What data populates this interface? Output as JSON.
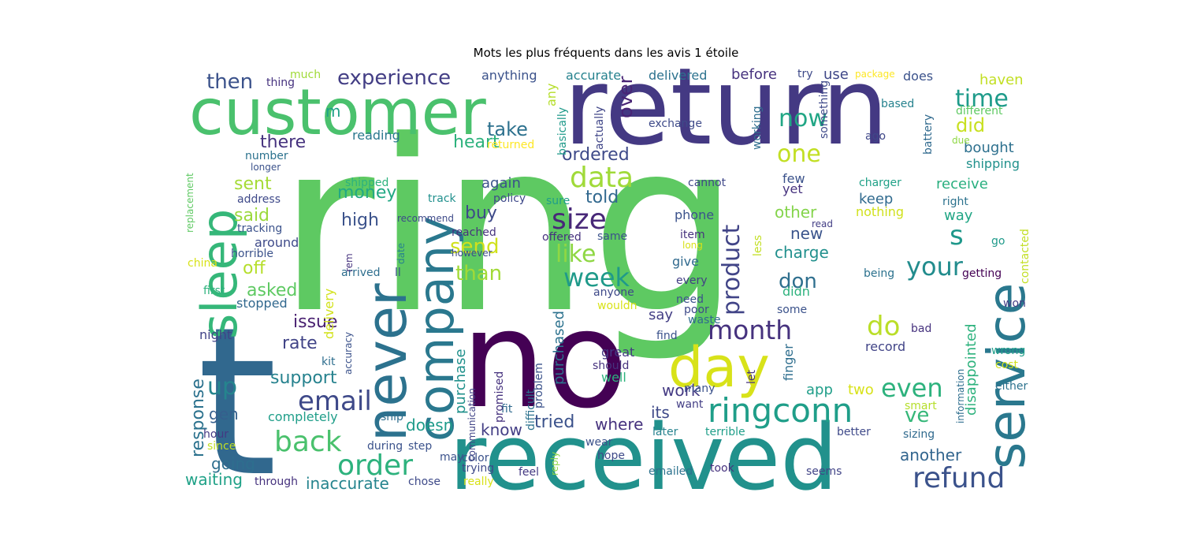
{
  "chart_data": {
    "type": "wordcloud",
    "title": "Mots les plus fréquents dans les avis 1 étoile",
    "background": "#ffffff",
    "colormap": "viridis",
    "words": [
      {
        "text": "ring",
        "color": "#5ec962"
      },
      {
        "text": "t",
        "color": "#31688e"
      },
      {
        "text": "return",
        "color": "#443983"
      },
      {
        "text": "received",
        "color": "#21918c"
      },
      {
        "text": "no",
        "color": "#440154"
      },
      {
        "text": "customer",
        "color": "#4ac16d"
      },
      {
        "text": "never",
        "color": "#2c728e"
      },
      {
        "text": "company",
        "color": "#2a788e"
      },
      {
        "text": "service",
        "color": "#2a788e"
      },
      {
        "text": "sleep",
        "color": "#35b779"
      },
      {
        "text": "day",
        "color": "#d8e219"
      },
      {
        "text": "ringconn",
        "color": "#1f9e89"
      },
      {
        "text": "back",
        "color": "#4ac16d"
      },
      {
        "text": "order",
        "color": "#2db27d"
      },
      {
        "text": "refund",
        "color": "#3b528b"
      },
      {
        "text": "size",
        "color": "#482878"
      },
      {
        "text": "month",
        "color": "#46327e"
      },
      {
        "text": "product",
        "color": "#414487"
      },
      {
        "text": "data",
        "color": "#a0da39"
      },
      {
        "text": "week",
        "color": "#1f9a8a"
      },
      {
        "text": "your",
        "color": "#228c8d"
      },
      {
        "text": "email",
        "color": "#3e4989"
      },
      {
        "text": "experience",
        "color": "#433e85"
      },
      {
        "text": "time",
        "color": "#1e9b8a"
      },
      {
        "text": "now",
        "color": "#21a685"
      },
      {
        "text": "one",
        "color": "#c2df23"
      },
      {
        "text": "do",
        "color": "#bade28"
      },
      {
        "text": "even",
        "color": "#2db27d"
      },
      {
        "text": "s",
        "color": "#1f988b"
      },
      {
        "text": "up",
        "color": "#25858e"
      },
      {
        "text": "like",
        "color": "#8fd744"
      },
      {
        "text": "send",
        "color": "#d0e11c"
      },
      {
        "text": "than",
        "color": "#a2da37"
      },
      {
        "text": "don",
        "color": "#2e6f8e"
      },
      {
        "text": "ve",
        "color": "#35b779"
      },
      {
        "text": "then",
        "color": "#3b528b"
      },
      {
        "text": "take",
        "color": "#2d718e"
      },
      {
        "text": "heart",
        "color": "#2db27d"
      },
      {
        "text": "ordered",
        "color": "#3e4a89"
      },
      {
        "text": "over",
        "color": "#482475"
      },
      {
        "text": "did",
        "color": "#c8e020"
      },
      {
        "text": "there",
        "color": "#46327e"
      },
      {
        "text": "sent",
        "color": "#a5db36"
      },
      {
        "text": "said",
        "color": "#9bd93c"
      },
      {
        "text": "money",
        "color": "#22a884"
      },
      {
        "text": "buy",
        "color": "#3e4a89"
      },
      {
        "text": "told",
        "color": "#31688e"
      },
      {
        "text": "high",
        "color": "#3b528b"
      },
      {
        "text": "issue",
        "color": "#481f70"
      },
      {
        "text": "rate",
        "color": "#414487"
      },
      {
        "text": "support",
        "color": "#26828e"
      },
      {
        "text": "off",
        "color": "#b5de2b"
      },
      {
        "text": "asked",
        "color": "#5ec962"
      },
      {
        "text": "response",
        "color": "#2c728e"
      },
      {
        "text": "gen",
        "color": "#355f8d"
      },
      {
        "text": "going",
        "color": "#2e6e8e"
      },
      {
        "text": "waiting",
        "color": "#1fa187"
      },
      {
        "text": "inaccurate",
        "color": "#25848e"
      },
      {
        "text": "tried",
        "color": "#3b528b"
      },
      {
        "text": "know",
        "color": "#433e85"
      },
      {
        "text": "doesn",
        "color": "#1e9b8a"
      },
      {
        "text": "where",
        "color": "#46327e"
      },
      {
        "text": "work",
        "color": "#443a83"
      },
      {
        "text": "its",
        "color": "#3e4989"
      },
      {
        "text": "app",
        "color": "#1f9e89"
      },
      {
        "text": "two",
        "color": "#d8e219"
      },
      {
        "text": "another",
        "color": "#32658e"
      },
      {
        "text": "new",
        "color": "#3a548c"
      },
      {
        "text": "charge",
        "color": "#21908d"
      },
      {
        "text": "other",
        "color": "#84d44b"
      },
      {
        "text": "receive",
        "color": "#29af7f"
      },
      {
        "text": "keep",
        "color": "#306a8e"
      },
      {
        "text": "way",
        "color": "#21a685"
      },
      {
        "text": "bought",
        "color": "#2d708e"
      },
      {
        "text": "haven",
        "color": "#c2df23"
      },
      {
        "text": "use",
        "color": "#3f4788"
      },
      {
        "text": "before",
        "color": "#46327e"
      },
      {
        "text": "delivered",
        "color": "#2c728e"
      },
      {
        "text": "accurate",
        "color": "#26828e"
      },
      {
        "text": "anything",
        "color": "#3b528b"
      },
      {
        "text": "any",
        "color": "#b5de2b"
      },
      {
        "text": "exchange",
        "color": "#3e4a89"
      },
      {
        "text": "purchased",
        "color": "#2c728e"
      },
      {
        "text": "purchase",
        "color": "#21918c"
      },
      {
        "text": "disappointed",
        "color": "#2db27d"
      },
      {
        "text": "completely",
        "color": "#1f9e89"
      },
      {
        "text": "delivery",
        "color": "#d2e21b"
      },
      {
        "text": "again",
        "color": "#3b528b"
      },
      {
        "text": "say",
        "color": "#433e85"
      },
      {
        "text": "give",
        "color": "#306a8e"
      },
      {
        "text": "record",
        "color": "#414487"
      },
      {
        "text": "stopped",
        "color": "#31688e"
      },
      {
        "text": "night",
        "color": "#404387"
      },
      {
        "text": "hour",
        "color": "#443983"
      },
      {
        "text": "reading",
        "color": "#2a788e"
      },
      {
        "text": "thing",
        "color": "#46337f"
      },
      {
        "text": "much",
        "color": "#a0da39"
      },
      {
        "text": "m",
        "color": "#1fa187"
      },
      {
        "text": "returned",
        "color": "#fde725"
      },
      {
        "text": "basically",
        "color": "#1f9a8a"
      },
      {
        "text": "actually",
        "color": "#404688"
      },
      {
        "text": "working",
        "color": "#2e6e8e"
      },
      {
        "text": "ago",
        "color": "#3f4889"
      },
      {
        "text": "something",
        "color": "#3e4989"
      },
      {
        "text": "battery",
        "color": "#306a8e"
      },
      {
        "text": "due",
        "color": "#8fd744"
      },
      {
        "text": "based",
        "color": "#26828e"
      },
      {
        "text": "different",
        "color": "#5ec962"
      },
      {
        "text": "try",
        "color": "#3e4a89"
      },
      {
        "text": "does",
        "color": "#3b528b"
      },
      {
        "text": "package",
        "color": "#fde725"
      },
      {
        "text": "shipping",
        "color": "#21918c"
      },
      {
        "text": "few",
        "color": "#3b528b"
      },
      {
        "text": "yet",
        "color": "#46327e"
      },
      {
        "text": "charger",
        "color": "#1fa187"
      },
      {
        "text": "nothing",
        "color": "#d0e11c"
      },
      {
        "text": "right",
        "color": "#2c728e"
      },
      {
        "text": "read",
        "color": "#433e85"
      },
      {
        "text": "go",
        "color": "#1f9a8a"
      },
      {
        "text": "contacted",
        "color": "#c2df23"
      },
      {
        "text": "getting",
        "color": "#440154"
      },
      {
        "text": "won",
        "color": "#433e85"
      },
      {
        "text": "being",
        "color": "#2c728e"
      },
      {
        "text": "some",
        "color": "#3b528b"
      },
      {
        "text": "didn",
        "color": "#2db27d"
      },
      {
        "text": "cannot",
        "color": "#3f4788"
      },
      {
        "text": "phone",
        "color": "#3b528b"
      },
      {
        "text": "item",
        "color": "#46327e"
      },
      {
        "text": "long",
        "color": "#d8e219"
      },
      {
        "text": "less",
        "color": "#c2df23"
      },
      {
        "text": "every",
        "color": "#433e85"
      },
      {
        "text": "need",
        "color": "#3b528b"
      },
      {
        "text": "poor",
        "color": "#3e4a89"
      },
      {
        "text": "waste",
        "color": "#306a8e"
      },
      {
        "text": "finger",
        "color": "#2e6e8e"
      },
      {
        "text": "let",
        "color": "#46327e"
      },
      {
        "text": "find",
        "color": "#3b528b"
      },
      {
        "text": "great",
        "color": "#443983"
      },
      {
        "text": "should",
        "color": "#46327e"
      },
      {
        "text": "well",
        "color": "#2db27d"
      },
      {
        "text": "many",
        "color": "#3b528b"
      },
      {
        "text": "want",
        "color": "#433e85"
      },
      {
        "text": "later",
        "color": "#26828e"
      },
      {
        "text": "terrible",
        "color": "#1f9e89"
      },
      {
        "text": "better",
        "color": "#3e4989"
      },
      {
        "text": "sizing",
        "color": "#306a8e"
      },
      {
        "text": "smart",
        "color": "#b5de2b"
      },
      {
        "text": "cost",
        "color": "#d0e11c"
      },
      {
        "text": "either",
        "color": "#2c728e"
      },
      {
        "text": "wrong",
        "color": "#1f9e89"
      },
      {
        "text": "bad",
        "color": "#46327e"
      },
      {
        "text": "information",
        "color": "#2e6e8e"
      },
      {
        "text": "seems",
        "color": "#414487"
      },
      {
        "text": "took",
        "color": "#46327e"
      },
      {
        "text": "emailed",
        "color": "#2c728e"
      },
      {
        "text": "hope",
        "color": "#3e4a89"
      },
      {
        "text": "wear",
        "color": "#3b528b"
      },
      {
        "text": "feel",
        "color": "#443983"
      },
      {
        "text": "reply",
        "color": "#8fd744"
      },
      {
        "text": "really",
        "color": "#d8e219"
      },
      {
        "text": "trying",
        "color": "#3e4989"
      },
      {
        "text": "color",
        "color": "#3b528b"
      },
      {
        "text": "may",
        "color": "#3b528b"
      },
      {
        "text": "fit",
        "color": "#306a8e"
      },
      {
        "text": "promised",
        "color": "#46327e"
      },
      {
        "text": "problem",
        "color": "#3b528b"
      },
      {
        "text": "difficult",
        "color": "#2c728e"
      },
      {
        "text": "communication",
        "color": "#414487"
      },
      {
        "text": "step",
        "color": "#3b528b"
      },
      {
        "text": "ship",
        "color": "#2e6e8e"
      },
      {
        "text": "during",
        "color": "#3b528b"
      },
      {
        "text": "through",
        "color": "#46327e"
      },
      {
        "text": "chose",
        "color": "#3e4a89"
      },
      {
        "text": "since",
        "color": "#c2df23"
      },
      {
        "text": "first",
        "color": "#2db27d"
      },
      {
        "text": "china",
        "color": "#d8e219"
      },
      {
        "text": "horrible",
        "color": "#3b528b"
      },
      {
        "text": "around",
        "color": "#3e4a89"
      },
      {
        "text": "tracking",
        "color": "#3b528b"
      },
      {
        "text": "address",
        "color": "#3e4989"
      },
      {
        "text": "longer",
        "color": "#3b528b"
      },
      {
        "text": "number",
        "color": "#2c728e"
      },
      {
        "text": "replacement",
        "color": "#5ec962"
      },
      {
        "text": "shipped",
        "color": "#2db27d"
      },
      {
        "text": "recommend",
        "color": "#3e4a89"
      },
      {
        "text": "reached",
        "color": "#46327e"
      },
      {
        "text": "however",
        "color": "#3e4a89"
      },
      {
        "text": "arrived",
        "color": "#2e6e8e"
      },
      {
        "text": "ll",
        "color": "#3b528b"
      },
      {
        "text": "date",
        "color": "#26828e"
      },
      {
        "text": "rem",
        "color": "#46327e"
      },
      {
        "text": "accuracy",
        "color": "#3b528b"
      },
      {
        "text": "kit",
        "color": "#2e6e8e"
      },
      {
        "text": "track",
        "color": "#21908d"
      },
      {
        "text": "policy",
        "color": "#3e4989"
      },
      {
        "text": "sure",
        "color": "#1f9e89"
      },
      {
        "text": "offered",
        "color": "#46327e"
      },
      {
        "text": "same",
        "color": "#3b528b"
      },
      {
        "text": "anyone",
        "color": "#3e4989"
      },
      {
        "text": "wouldn",
        "color": "#d8e219"
      }
    ]
  }
}
